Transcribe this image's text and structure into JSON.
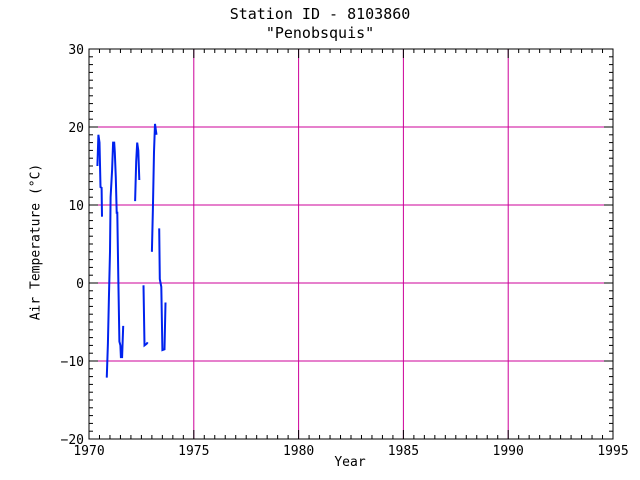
{
  "chart_data": {
    "type": "line",
    "title": "Station ID - 8103860",
    "subtitle": "\"Penobsquis\"",
    "xlabel": "Year",
    "ylabel": "Air Temperature (°C)",
    "xlim": [
      1970,
      1995
    ],
    "ylim": [
      -20,
      30
    ],
    "xticks": [
      1970,
      1975,
      1980,
      1985,
      1990,
      1995
    ],
    "yticks": [
      -20,
      -10,
      0,
      10,
      20,
      30
    ],
    "grid": true,
    "colors": {
      "series": "#0022ee",
      "grid": "#cc0099",
      "axis": "#000000"
    },
    "series": [
      {
        "values": [
          [
            1970.4,
            15.0
          ],
          [
            1970.45,
            19.0
          ],
          [
            1970.5,
            18.0
          ],
          [
            1970.55,
            12.3
          ],
          [
            1970.6,
            12.2
          ],
          [
            1970.62,
            8.5
          ]
        ]
      },
      {
        "values": [
          [
            1970.8,
            -12.0
          ],
          [
            1970.85,
            -12.0
          ],
          [
            1970.9,
            -7.8
          ],
          [
            1970.95,
            -2.0
          ],
          [
            1971.0,
            4.0
          ],
          [
            1971.03,
            11.0
          ],
          [
            1971.1,
            14.5
          ],
          [
            1971.15,
            18.0
          ],
          [
            1971.2,
            18.0
          ],
          [
            1971.23,
            16.8
          ],
          [
            1971.28,
            13.5
          ],
          [
            1971.32,
            9.0
          ],
          [
            1971.35,
            9.0
          ],
          [
            1971.4,
            0.7
          ],
          [
            1971.45,
            -7.5
          ],
          [
            1971.5,
            -8.0
          ],
          [
            1971.52,
            -9.5
          ],
          [
            1971.58,
            -9.5
          ],
          [
            1971.63,
            -5.5
          ]
        ]
      },
      {
        "values": [
          [
            1972.2,
            10.5
          ],
          [
            1972.25,
            15.6
          ],
          [
            1972.3,
            18.0
          ],
          [
            1972.35,
            17.0
          ],
          [
            1972.4,
            13.2
          ]
        ]
      },
      {
        "values": [
          [
            1972.6,
            -0.3
          ],
          [
            1972.65,
            -8.0
          ],
          [
            1972.75,
            -7.8
          ],
          [
            1972.8,
            -7.6
          ]
        ]
      },
      {
        "values": [
          [
            1973.0,
            4.0
          ],
          [
            1973.05,
            9.5
          ],
          [
            1973.1,
            16.8
          ],
          [
            1973.15,
            20.4
          ],
          [
            1973.22,
            19.0
          ]
        ]
      },
      {
        "values": [
          [
            1973.35,
            7.0
          ],
          [
            1973.38,
            0.5
          ],
          [
            1973.45,
            -0.5
          ],
          [
            1973.5,
            -8.6
          ],
          [
            1973.6,
            -8.5
          ],
          [
            1973.65,
            -2.5
          ]
        ]
      }
    ]
  }
}
